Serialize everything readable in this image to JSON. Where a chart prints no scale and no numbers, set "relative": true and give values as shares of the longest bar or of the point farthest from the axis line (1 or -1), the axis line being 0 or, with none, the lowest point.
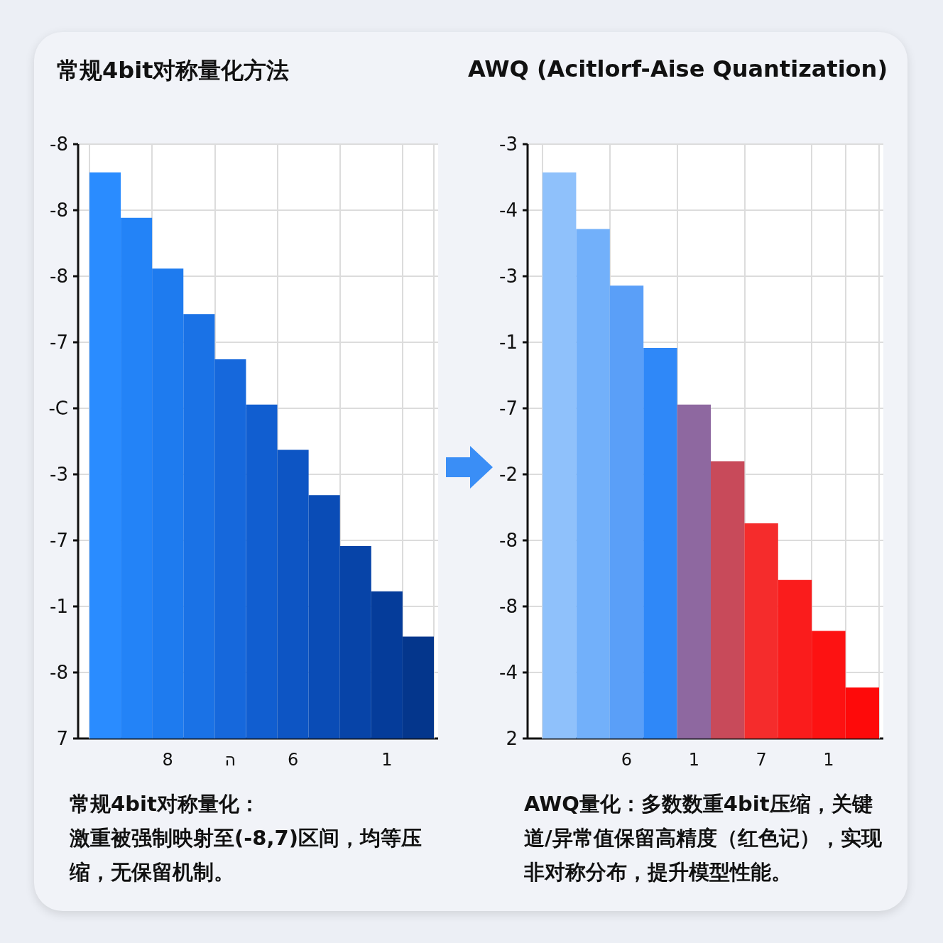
{
  "chart_data": [
    {
      "type": "bar",
      "title": "常规4bit对称量化方法",
      "relative": true,
      "categories": [
        null,
        null,
        "8",
        null,
        "ה",
        null,
        "6",
        null,
        null,
        "1",
        null
      ],
      "values": [
        1,
        0.92,
        0.83,
        0.75,
        0.67,
        0.59,
        0.51,
        0.43,
        0.34,
        0.26,
        0.18
      ],
      "colors": [
        "#2a8cff",
        "#2383f7",
        "#1e7bef",
        "#1a72e6",
        "#1668dc",
        "#115ed0",
        "#0d55c4",
        "#0a4cb6",
        "#0744a8",
        "#053c9a",
        "#04368c"
      ],
      "grid": true,
      "annotations": [
        "常规4bit对称量化：",
        "激重被强制映射至(-8,7)区间，均等压缩，无保留机制。",
        "-8",
        "-8",
        "-8",
        "-7",
        "-C",
        "-3",
        "-7",
        "-1",
        "-8",
        "7"
      ]
    },
    {
      "type": "bar",
      "title": "AWQ (Acitlorf-Aise Quantization)",
      "relative": true,
      "categories": [
        null,
        null,
        "6",
        null,
        "1",
        null,
        "7",
        null,
        "1",
        null
      ],
      "values": [
        1,
        0.9,
        0.8,
        0.69,
        0.59,
        0.49,
        0.38,
        0.28,
        0.19,
        0.09
      ],
      "colors": [
        "#8fc1fb",
        "#72b0fa",
        "#5a9ff8",
        "#2f88f8",
        "#8e68a0",
        "#c84a5a",
        "#f52c2c",
        "#fa1c1c",
        "#fd1212",
        "#fe0a0a"
      ],
      "grid": true,
      "annotations": [
        "AWQ量化：多数数重4bit压缩，关键道/异常值保留高精度（红色记），实现非对称分布，提升模型性能。",
        "-3",
        "-4",
        "-3",
        "-1",
        "-7",
        "-2",
        "-8",
        "-8",
        "-4",
        "2"
      ]
    }
  ]
}
